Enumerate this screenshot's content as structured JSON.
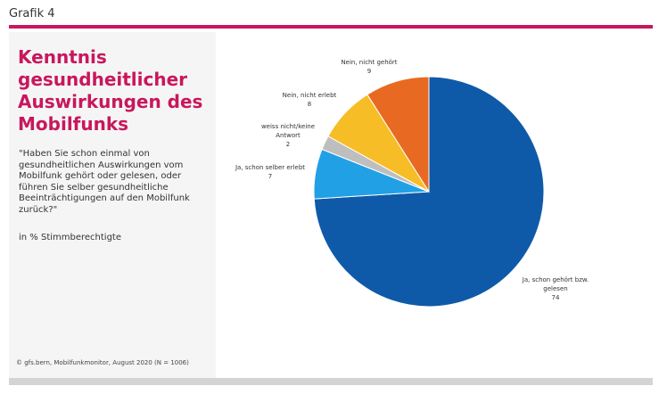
{
  "page_label": "Grafik 4",
  "question": "\"Haben Sie schon einmal von gesundheitlichen Auswirkungen vom Mobilfunk gehört oder gelesen, oder führen Sie selber gesundheitliche Beeinträchtigungen auf den Mobilfunk zurück?\"",
  "unit_note": "in % Stimmberechtigte",
  "source": "© gfs.bern, Mobilfunkmonitor, August 2020 (N = 1006)",
  "colors": {
    "accent": "#c8175d",
    "panel": "#f5f5f5",
    "bar": "#d4d4d4"
  },
  "chart_data": {
    "type": "pie",
    "title": "Kenntnis gesundheitlicher Auswirkungen des Mobilfunks",
    "title_lines": [
      "Kenntnis",
      "gesundheitlicher",
      "Auswirkungen des",
      "Mobilfunks"
    ],
    "start_angle_deg": 0,
    "direction": "clockwise",
    "slices": [
      {
        "label": "Ja, schon gehört bzw. gelesen",
        "label_lines": [
          "Ja, schon gehört bzw.",
          "gelesen"
        ],
        "value": 74,
        "color": "#0f5aa8"
      },
      {
        "label": "Ja, schon selber erlebt",
        "label_lines": [
          "Ja, schon selber erlebt"
        ],
        "value": 7,
        "color": "#22a0e6"
      },
      {
        "label": "weiss nicht/keine Antwort",
        "label_lines": [
          "weiss nicht/keine",
          "Antwort"
        ],
        "value": 2,
        "color": "#bebebe"
      },
      {
        "label": "Nein, nicht erlebt",
        "label_lines": [
          "Nein, nicht erlebt"
        ],
        "value": 8,
        "color": "#f7bd26"
      },
      {
        "label": "Nein, nicht gehört",
        "label_lines": [
          "Nein, nicht gehört"
        ],
        "value": 9,
        "color": "#e86a22"
      }
    ]
  }
}
